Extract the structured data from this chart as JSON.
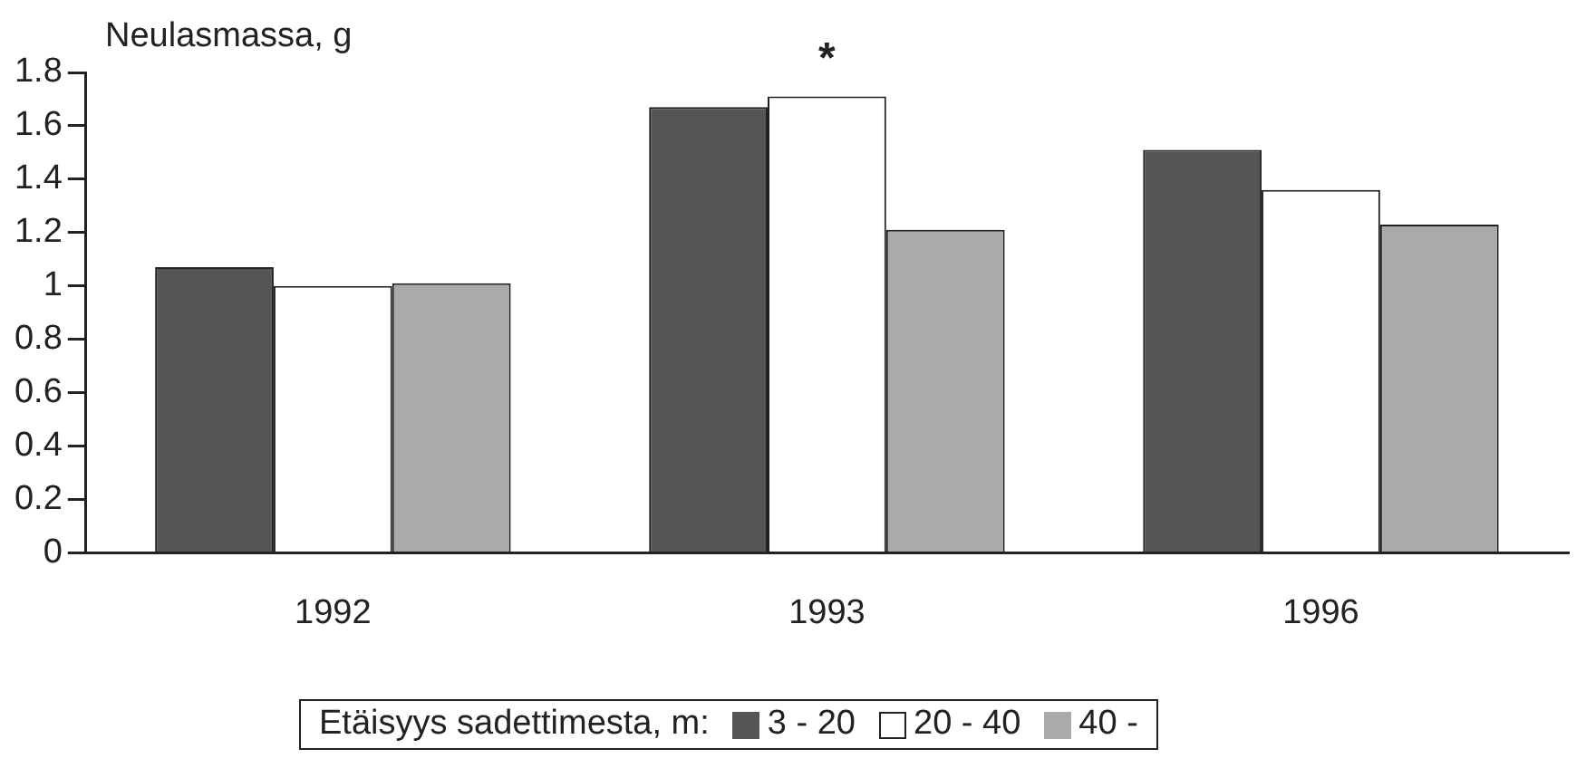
{
  "chart_data": {
    "type": "bar",
    "ylabel": "Neulasmassa, g",
    "legend_title": "Etäisyys sadettimesta, m:",
    "categories": [
      "1992",
      "1993",
      "1996"
    ],
    "series": [
      {
        "name": "3 - 20",
        "color": "#555555",
        "values": [
          1.07,
          1.67,
          1.51
        ]
      },
      {
        "name": "20 - 40",
        "color": "#ffffff",
        "values": [
          1.0,
          1.71,
          1.36
        ]
      },
      {
        "name": "40 -",
        "color": "#aaaaaa",
        "values": [
          1.01,
          1.21,
          1.23
        ]
      }
    ],
    "ylim": [
      0,
      1.8
    ],
    "yticks": [
      0,
      0.2,
      0.4,
      0.6,
      0.8,
      1,
      1.2,
      1.4,
      1.6,
      1.8
    ],
    "grid": false,
    "legend": "bottom",
    "annotations": [
      {
        "text": "*",
        "x": "1993",
        "y": 1.71
      }
    ]
  }
}
